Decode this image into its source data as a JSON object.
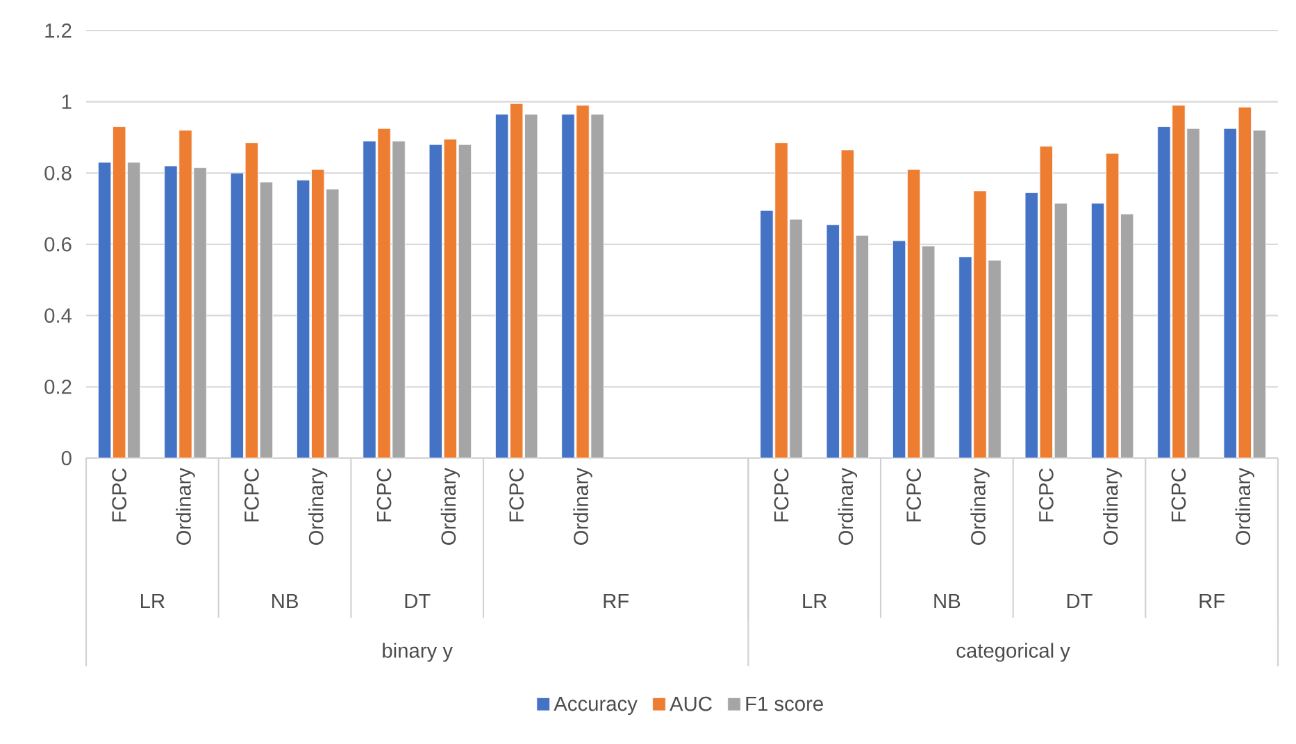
{
  "chart_data": {
    "type": "bar",
    "categories": [
      "FCPC",
      "Ordinary",
      "FCPC",
      "Ordinary",
      "FCPC",
      "Ordinary",
      "FCPC",
      "Ordinary",
      null,
      null,
      "FCPC",
      "Ordinary",
      "FCPC",
      "Ordinary",
      "FCPC",
      "Ordinary",
      "FCPC",
      "Ordinary"
    ],
    "series": [
      {
        "name": "Accuracy",
        "color": "#4472c4",
        "values": [
          0.83,
          0.82,
          0.8,
          0.78,
          0.89,
          0.88,
          0.965,
          0.965,
          null,
          null,
          0.695,
          0.655,
          0.61,
          0.565,
          0.745,
          0.715,
          0.93,
          0.925
        ]
      },
      {
        "name": "AUC",
        "color": "#ed7d31",
        "values": [
          0.93,
          0.92,
          0.885,
          0.81,
          0.925,
          0.895,
          0.995,
          0.99,
          null,
          null,
          0.885,
          0.865,
          0.81,
          0.75,
          0.875,
          0.855,
          0.99,
          0.985
        ]
      },
      {
        "name": "F1 score",
        "color": "#a5a5a5",
        "values": [
          0.83,
          0.815,
          0.775,
          0.755,
          0.89,
          0.88,
          0.965,
          0.965,
          null,
          null,
          0.67,
          0.625,
          0.595,
          0.555,
          0.715,
          0.685,
          0.925,
          0.92
        ]
      }
    ],
    "annotations": [
      "LR",
      "NB",
      "DT",
      "RF",
      "LR",
      "NB",
      "DT",
      "RF",
      "binary y",
      "categorical y"
    ],
    "ylim": [
      0,
      1.2
    ],
    "yticks": [
      0,
      0.2,
      0.4,
      0.6,
      0.8,
      1,
      1.2
    ],
    "grid": "y",
    "legend": "bottom"
  }
}
